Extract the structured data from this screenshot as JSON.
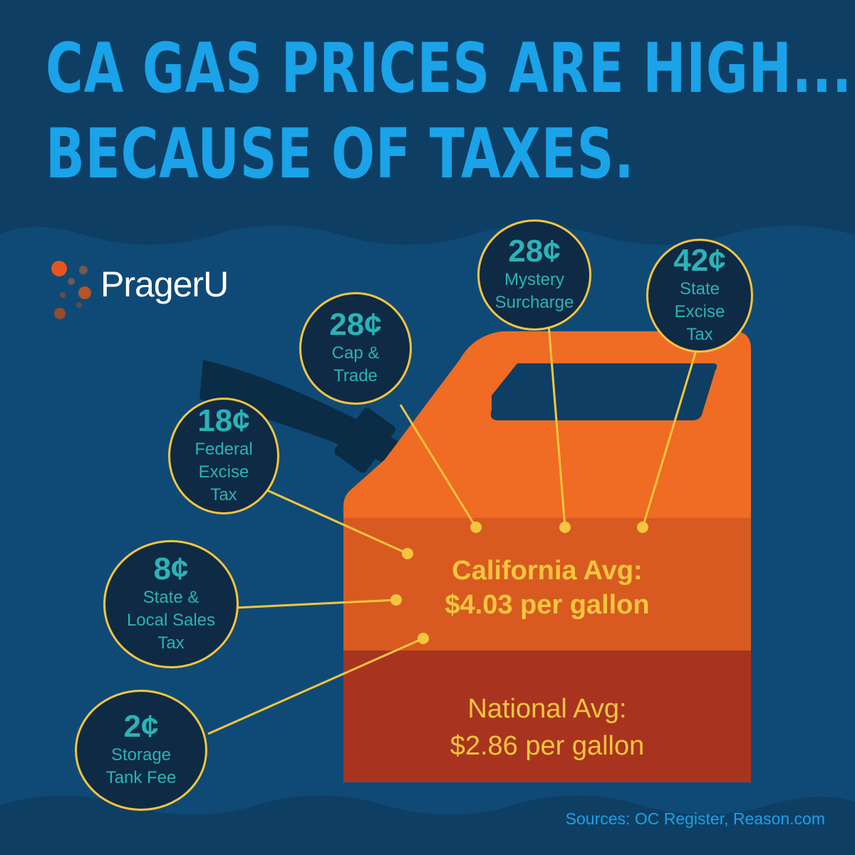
{
  "title": {
    "line1": "CA GAS PRICES ARE HIGH...",
    "line2": "BECAUSE OF TAXES."
  },
  "brand": {
    "name": "PragerU"
  },
  "diagram": {
    "components": [
      {
        "id": "state-excise-tax",
        "amount": "42¢",
        "label": "State\nExcise\nTax",
        "value_cents": 42
      },
      {
        "id": "mystery-surcharge",
        "amount": "28¢",
        "label": "Mystery\nSurcharge",
        "value_cents": 28
      },
      {
        "id": "cap-and-trade",
        "amount": "28¢",
        "label": "Cap &\nTrade",
        "value_cents": 28
      },
      {
        "id": "federal-excise-tax",
        "amount": "18¢",
        "label": "Federal\nExcise\nTax",
        "value_cents": 18
      },
      {
        "id": "state-local-sales-tax",
        "amount": "8¢",
        "label": "State &\nLocal Sales\nTax",
        "value_cents": 8
      },
      {
        "id": "storage-tank-fee",
        "amount": "2¢",
        "label": "Storage\nTank Fee",
        "value_cents": 2
      }
    ],
    "california": {
      "line1": "California Avg:",
      "line2": "$4.03 per gallon",
      "price_per_gallon": 4.03
    },
    "national": {
      "line1": "National Avg:",
      "line2": "$2.86 per gallon",
      "price_per_gallon": 2.86
    }
  },
  "sources": "Sources: OC Register, Reason.com",
  "colors": {
    "background_top": "#0e3e63",
    "background": "#0f4a76",
    "wave_bottom": "#0e3e63",
    "headline": "#1aa3e8",
    "bubble_fill": "#0f2a44",
    "bubble_border": "#f6c53f",
    "bubble_text": "#2bb3b8",
    "can_body": "#f06b24",
    "can_california_band": "#d85a20",
    "can_national_band": "#a8341f",
    "nozzle": "#0b2c45",
    "connector": "#f6c53f",
    "highlight_text": "#f6c53f",
    "logo_orange": "#e8541e",
    "logo_brown": "#9a4b2a",
    "logo_dark": "#8a5a4a"
  }
}
